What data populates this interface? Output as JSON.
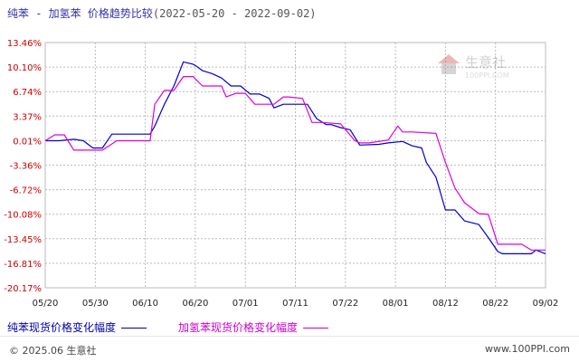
{
  "title": {
    "main": "纯苯 - 加氢苯 价格趋势比较",
    "range": "(2022-05-20 - 2022-09-02)"
  },
  "watermark": {
    "text": "生意社",
    "url": "100PPI.COM"
  },
  "legend": [
    {
      "label": "纯苯现货价格变化幅度",
      "color": "#0000cc"
    },
    {
      "label": "加氢苯现货价格变化幅度",
      "color": "#dd00dd"
    }
  ],
  "footer": {
    "left": "© 2025.06 生意社",
    "right": "www.100PPI.com"
  },
  "chart_data": {
    "type": "line",
    "x_tick_labels": [
      "05/20",
      "05/30",
      "06/10",
      "06/20",
      "07/01",
      "07/11",
      "07/22",
      "08/01",
      "08/12",
      "08/22",
      "09/02"
    ],
    "y_tick_labels": [
      "13.46%",
      "10.10%",
      "6.74%",
      "3.37%",
      "0.01%",
      "-3.36%",
      "-6.72%",
      "-10.08%",
      "-13.45%",
      "-16.81%",
      "-20.17%"
    ],
    "ylim": [
      -20.17,
      13.46
    ],
    "x_range": [
      0,
      105
    ],
    "grid": true,
    "legend_position": "bottom",
    "series": [
      {
        "name": "纯苯现货价格变化幅度",
        "color": "#0000cc",
        "x": [
          0,
          3,
          6,
          8,
          10,
          12,
          14,
          16,
          22,
          23,
          25,
          27,
          29,
          31,
          32,
          33,
          35,
          37,
          39,
          41,
          43,
          45,
          47,
          48,
          50,
          51,
          53,
          55,
          57,
          59,
          60,
          62,
          64,
          66,
          70,
          72,
          75,
          77,
          79,
          80,
          82,
          84,
          86,
          88,
          91,
          93,
          95,
          96,
          98,
          100,
          102,
          103,
          105
        ],
        "y": [
          0,
          0,
          0.2,
          0,
          -1,
          -1,
          0.9,
          0.9,
          0.9,
          2,
          5,
          7.5,
          10.8,
          10.5,
          10.1,
          9.6,
          9.2,
          8.6,
          7.5,
          7.5,
          6.4,
          6.4,
          5.8,
          4.5,
          5,
          5,
          5,
          5,
          3,
          2.2,
          2.2,
          1.8,
          1.5,
          -0.6,
          -0.5,
          -0.3,
          -0.1,
          -0.7,
          -1,
          -3,
          -5,
          -9.5,
          -9.5,
          -11,
          -11.5,
          -13.3,
          -15.2,
          -15.5,
          -15.5,
          -15.5,
          -15.5,
          -15,
          -15.5
        ]
      },
      {
        "name": "加氢苯现货价格变化幅度",
        "color": "#dd00dd",
        "x": [
          0,
          2,
          4,
          6,
          8,
          12,
          15,
          17,
          22,
          23,
          25,
          27,
          29,
          31,
          33,
          35,
          37,
          38,
          40,
          42,
          44,
          46,
          48,
          50,
          51,
          54,
          56,
          58,
          62,
          65,
          66,
          68,
          72,
          74,
          75,
          77,
          82,
          84,
          86,
          88,
          91,
          93,
          95,
          96,
          100,
          102,
          105
        ],
        "y": [
          0,
          0.8,
          0.8,
          -1.3,
          -1.3,
          -1.3,
          0,
          0,
          0,
          5,
          6.9,
          6.9,
          8.8,
          8.8,
          7.5,
          7.5,
          7.5,
          6,
          6.5,
          6.5,
          5,
          5,
          5,
          6,
          6,
          5.8,
          2.5,
          2.5,
          2.3,
          0,
          -0.3,
          -0.3,
          0.1,
          2,
          1.2,
          1.2,
          1,
          -3,
          -6.5,
          -8.5,
          -10,
          -10.1,
          -14.2,
          -14.2,
          -14.2,
          -15,
          -15
        ]
      }
    ]
  }
}
